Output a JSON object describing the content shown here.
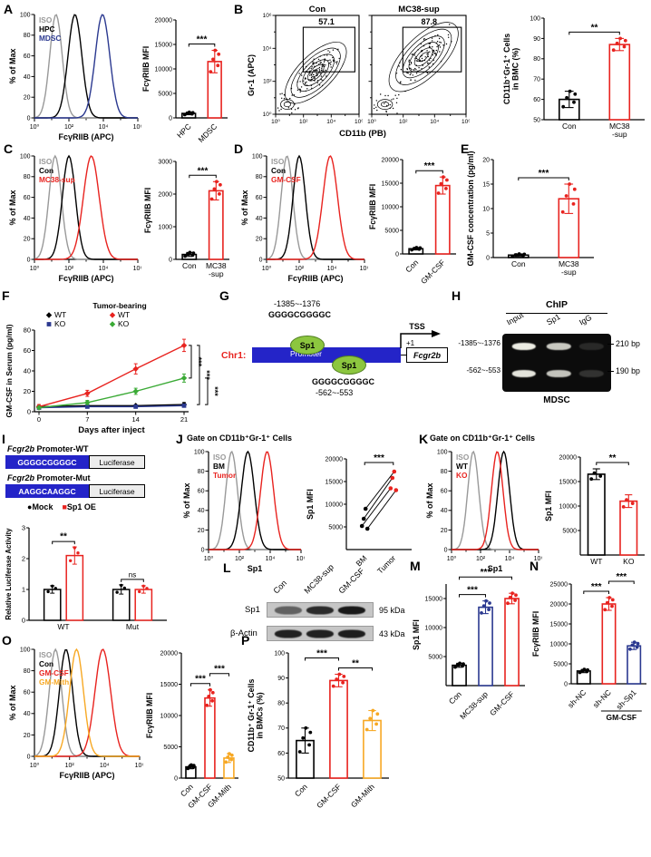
{
  "colors": {
    "black": "#000000",
    "red": "#e8231f",
    "blue": "#2b3990",
    "green": "#3aaa35",
    "orange": "#f7a823",
    "iso_gray": "#999999",
    "sp1_green": "#8cc63f",
    "promoter_blue": "#2424c8"
  },
  "panels": {
    "A": {
      "label": "A",
      "hist": {
        "ylabel": "% of Max",
        "xlabel": "FcγRIIB (APC)",
        "yticks": [
          0,
          20,
          40,
          60,
          80,
          100
        ],
        "xticklabels": [
          "10⁰",
          "10²",
          "10⁴",
          "10⁶"
        ],
        "series": [
          {
            "name": "ISO",
            "color": "#999999",
            "peak": 1.25,
            "sigma": 0.36
          },
          {
            "name": "HPC",
            "color": "#000000",
            "peak": 2.35,
            "sigma": 0.4
          },
          {
            "name": "MDSC",
            "color": "#2b3990",
            "peak": 3.95,
            "sigma": 0.42
          }
        ]
      },
      "bar": {
        "ylabel": "FcγRIIB MFI",
        "ylim": [
          0,
          20000
        ],
        "yticks": [
          0,
          5000,
          10000,
          15000,
          20000
        ],
        "categories": [
          "HPC",
          "MDSC"
        ],
        "values": [
          900,
          11500
        ],
        "errors": [
          250,
          2300
        ],
        "colors": [
          "#000000",
          "#e8231f"
        ],
        "n": 5,
        "sig": [
          {
            "from": 0,
            "to": 1,
            "label": "***"
          }
        ]
      }
    },
    "B": {
      "label": "B",
      "flow": {
        "titles": [
          "Con",
          "MC38-sup"
        ],
        "gates": [
          "57.1",
          "87.8"
        ],
        "xlabel": "CD11b (PB)",
        "ylabel": "Gr-1 (APC)",
        "ticks": [
          "10⁰",
          "10²",
          "10⁴",
          "10⁶"
        ],
        "centers": [
          [
            0.48,
            0.58
          ],
          [
            0.55,
            0.42
          ]
        ]
      },
      "bar": {
        "ylabel": [
          "CD11b⁺Gr-1⁺ Cells",
          "in BMC (%)"
        ],
        "ylim": [
          50,
          100
        ],
        "yticks": [
          50,
          60,
          70,
          80,
          90,
          100
        ],
        "categories": [
          "Con",
          [
            "MC38",
            "-sup"
          ]
        ],
        "values": [
          60,
          87
        ],
        "errors": [
          4,
          3
        ],
        "colors": [
          "#000000",
          "#e8231f"
        ],
        "n": 5,
        "sig": [
          {
            "from": 0,
            "to": 1,
            "label": "**"
          }
        ]
      }
    },
    "C": {
      "label": "C",
      "hist": {
        "ylabel": "% of Max",
        "xlabel": "FcγRIIB (APC)",
        "yticks": [
          0,
          20,
          40,
          60,
          80,
          100
        ],
        "xticklabels": [
          "10⁰",
          "10²",
          "10⁴",
          "10⁶"
        ],
        "series": [
          {
            "name": "ISO",
            "color": "#999999",
            "peak": 1.2,
            "sigma": 0.36
          },
          {
            "name": "Con",
            "color": "#000000",
            "peak": 2.0,
            "sigma": 0.38
          },
          {
            "name": "MC38-sup",
            "color": "#e8231f",
            "peak": 3.3,
            "sigma": 0.46
          }
        ]
      },
      "bar": {
        "ylabel": "FcγRIIB MFI",
        "ylim": [
          0,
          3000
        ],
        "yticks": [
          0,
          1000,
          2000,
          3000
        ],
        "categories": [
          "Con",
          [
            "MC38",
            "-sup"
          ]
        ],
        "values": [
          150,
          2100
        ],
        "errors": [
          60,
          280
        ],
        "colors": [
          "#000000",
          "#e8231f"
        ],
        "n": 5,
        "sig": [
          {
            "from": 0,
            "to": 1,
            "label": "***"
          }
        ]
      }
    },
    "D": {
      "label": "D",
      "hist": {
        "ylabel": "% of Max",
        "xlabel": "FcγRIIB (APC)",
        "yticks": [
          0,
          20,
          40,
          60,
          80,
          100
        ],
        "xticklabels": [
          "10⁰",
          "10²",
          "10⁴",
          "10⁶"
        ],
        "series": [
          {
            "name": "ISO",
            "color": "#999999",
            "peak": 1.25,
            "sigma": 0.36
          },
          {
            "name": "Con",
            "color": "#000000",
            "peak": 2.0,
            "sigma": 0.38
          },
          {
            "name": "GM-CSF",
            "color": "#e8231f",
            "peak": 3.9,
            "sigma": 0.45
          }
        ]
      },
      "bar": {
        "ylabel": "FcγRIIB MFI",
        "ylim": [
          0,
          20000
        ],
        "yticks": [
          0,
          5000,
          10000,
          15000,
          20000
        ],
        "categories": [
          "Con",
          "GM-CSF"
        ],
        "values": [
          1100,
          14500
        ],
        "errors": [
          250,
          1800
        ],
        "colors": [
          "#000000",
          "#e8231f"
        ],
        "n": 5,
        "sig": [
          {
            "from": 0,
            "to": 1,
            "label": "***"
          }
        ]
      }
    },
    "E": {
      "label": "E",
      "bar": {
        "ylabel": "GM-CSF concentration (pg/ml)",
        "ylim": [
          0,
          20
        ],
        "yticks": [
          0,
          5,
          10,
          15,
          20
        ],
        "categories": [
          "Con",
          [
            "MC38",
            "-sup"
          ]
        ],
        "values": [
          0.5,
          12
        ],
        "errors": [
          0.25,
          3
        ],
        "colors": [
          "#000000",
          "#e8231f"
        ],
        "n": 5,
        "sig": [
          {
            "from": 0,
            "to": 1,
            "label": "***"
          }
        ]
      }
    },
    "F": {
      "label": "F",
      "line": {
        "ylabel": "GM-CSF in Serum (pg/ml)",
        "xlabel": "Days after inject",
        "xticks": [
          0,
          7,
          14,
          21
        ],
        "ylim": [
          0,
          80
        ],
        "yticks": [
          0,
          20,
          40,
          60,
          80
        ],
        "legend": {
          "title": "Tumor-bearing",
          "left": [
            {
              "label": "WT",
              "color": "#000000",
              "marker": "diamond"
            },
            {
              "label": "KO",
              "color": "#2b3990",
              "marker": "square"
            }
          ],
          "right": [
            {
              "label": "WT",
              "color": "#e8231f",
              "marker": "diamond"
            },
            {
              "label": "KO",
              "color": "#3aaa35",
              "marker": "diamond"
            }
          ]
        },
        "series": [
          {
            "name": "WT",
            "color": "#000000",
            "marker": "diamond",
            "values": [
              5,
              6,
              6,
              7
            ],
            "errors": [
              1,
              1,
              1,
              2
            ]
          },
          {
            "name": "KO",
            "color": "#2b3990",
            "marker": "square",
            "values": [
              4,
              5,
              5,
              6
            ],
            "errors": [
              1,
              1,
              1,
              1
            ]
          },
          {
            "name": "Tumor-bearing WT",
            "color": "#e8231f",
            "marker": "diamond",
            "values": [
              5,
              18,
              42,
              65
            ],
            "errors": [
              2,
              3,
              5,
              6
            ]
          },
          {
            "name": "Tumor-bearing KO",
            "color": "#3aaa35",
            "marker": "diamond",
            "values": [
              4,
              9,
              20,
              33
            ],
            "errors": [
              1,
              2,
              3,
              4
            ]
          }
        ],
        "sig": [
          "***",
          "***",
          "***"
        ]
      }
    },
    "G": {
      "label": "G",
      "pos1": "-1385~-1376",
      "seq1": "GGGGCGGGGC",
      "chr": "Chr1:",
      "promoter": "Promoter",
      "sp1a": "Sp1",
      "sp1b": "Sp1",
      "tss": "TSS",
      "plus_one": "+1",
      "gene": "Fcgr2b",
      "seq2": "GGGGCGGGGC",
      "pos2": "-562~-553"
    },
    "H": {
      "label": "H",
      "title": "ChIP",
      "cols": [
        "Input",
        "Sp1",
        "IgG"
      ],
      "row_labels": [
        "-1385~-1376",
        "-562~-553"
      ],
      "sizes": [
        "210 bp",
        "190 bp"
      ],
      "footer": "MDSC",
      "gel": {
        "lanes": [
          0.2,
          0.52,
          0.82
        ],
        "rows": [
          {
            "top": 16,
            "bands": [
              0.95,
              0.8,
              0.12
            ]
          },
          {
            "top": 62,
            "bands": [
              0.92,
              0.78,
              0.16
            ]
          }
        ]
      }
    },
    "I": {
      "label": "I",
      "constructs": [
        {
          "gene": "Fcgr2b",
          "suffix": " Promoter-WT",
          "seq": "GGGGCGGGGC",
          "reporter": "Luciferase"
        },
        {
          "gene": "Fcgr2b",
          "suffix": " Promoter-Mut",
          "seq": "AAGGCAAGGC",
          "reporter": "Luciferase"
        }
      ],
      "legend": [
        {
          "symbol": "●",
          "label": "Mock",
          "color": "#000000"
        },
        {
          "symbol": "■",
          "label": "Sp1 OE",
          "color": "#e8231f"
        }
      ],
      "gbar": {
        "ylabel": "Relative Luciferase Activity",
        "ylim": [
          0,
          3
        ],
        "yticks": [
          0,
          1,
          2,
          3
        ],
        "categories": [
          "WT",
          "Mut"
        ],
        "series": [
          {
            "name": "Mock",
            "color": "#000000"
          },
          {
            "name": "Sp1 OE",
            "color": "#e8231f"
          }
        ],
        "values": [
          [
            1.0,
            2.1
          ],
          [
            1.0,
            1.0
          ]
        ],
        "errors": [
          [
            0.12,
            0.28
          ],
          [
            0.15,
            0.12
          ]
        ],
        "sig": [
          "**",
          "ns"
        ]
      }
    },
    "J": {
      "label": "J",
      "title": "Gate on CD11b⁺Gr-1⁺ Cells",
      "hist": {
        "ylabel": "% of Max",
        "xlabel": "Sp1",
        "yticks": [
          0,
          20,
          40,
          60,
          80,
          100
        ],
        "xticklabels": [
          "10⁰",
          "10²",
          "10⁴",
          "10⁶"
        ],
        "series": [
          {
            "name": "ISO",
            "color": "#999999",
            "peak": 1.5,
            "sigma": 0.38
          },
          {
            "name": "BM",
            "color": "#000000",
            "peak": 2.55,
            "sigma": 0.42
          },
          {
            "name": "Tumor",
            "color": "#e8231f",
            "peak": 3.8,
            "sigma": 0.42
          }
        ]
      },
      "paired": {
        "ylabel": "Sp1 MFI",
        "ylim": [
          0,
          20000
        ],
        "yticks": [
          5000,
          10000,
          15000,
          20000
        ],
        "categories": [
          "BM",
          "Tumor"
        ],
        "colors": [
          "#000000",
          "#e8231f"
        ],
        "pairs": [
          [
            5200,
            13500
          ],
          [
            6800,
            15800
          ],
          [
            9000,
            17200
          ],
          [
            4600,
            13100
          ]
        ],
        "sig": "***"
      }
    },
    "K": {
      "label": "K",
      "title": "Gate on CD11b⁺Gr-1⁺ Cells",
      "hist": {
        "ylabel": "% of Max",
        "xlabel": "Sp1",
        "yticks": [
          0,
          20,
          40,
          60,
          80,
          100
        ],
        "xticklabels": [
          "10⁰",
          "10²",
          "10⁴",
          "10⁶"
        ],
        "series": [
          {
            "name": "ISO",
            "color": "#999999",
            "peak": 1.5,
            "sigma": 0.38
          },
          {
            "name": "WT",
            "color": "#000000",
            "peak": 3.6,
            "sigma": 0.4
          },
          {
            "name": "KO",
            "color": "#e8231f",
            "peak": 3.15,
            "sigma": 0.4
          }
        ]
      },
      "bar": {
        "ylabel": "Sp1 MFI",
        "ylim": [
          0,
          20000
        ],
        "yticks": [
          5000,
          10000,
          15000,
          20000
        ],
        "categories": [
          "WT",
          "KO"
        ],
        "values": [
          16500,
          11000
        ],
        "errors": [
          1100,
          1300
        ],
        "colors": [
          "#000000",
          "#e8231f"
        ],
        "n": 3,
        "sig": [
          {
            "from": 0,
            "to": 1,
            "label": "**"
          }
        ]
      }
    },
    "L": {
      "label": "L",
      "lanes": [
        "Con",
        "MC38-sup",
        "GM-CSF"
      ],
      "rows": [
        {
          "label": "Sp1",
          "size": "95 kDa",
          "bands": [
            0.55,
            0.85,
            0.95
          ]
        },
        {
          "label": "β-Actin",
          "size": "43 kDa",
          "bands": [
            0.9,
            0.9,
            0.92
          ]
        }
      ]
    },
    "M": {
      "label": "M",
      "bar": {
        "ylabel": "Sp1 MFI",
        "ylim": [
          0,
          17500
        ],
        "yticks": [
          5000,
          10000,
          15000
        ],
        "categories": [
          "Con",
          "MC38-sup",
          "GM-CSF"
        ],
        "values": [
          3500,
          13500,
          15000
        ],
        "errors": [
          350,
          1100,
          900
        ],
        "colors": [
          "#000000",
          "#2b3990",
          "#e8231f"
        ],
        "n": 5,
        "sig": [
          {
            "from": 0,
            "to": 1,
            "label": "***",
            "level": 0
          },
          {
            "from": 0,
            "to": 2,
            "label": "***",
            "level": 1
          }
        ]
      }
    },
    "N": {
      "label": "N",
      "bar": {
        "ylabel": "FcγRIIB MFI",
        "ylim": [
          0,
          25000
        ],
        "yticks": [
          0,
          5000,
          10000,
          15000,
          20000,
          25000
        ],
        "categories": [
          "sh-NC",
          "sh-NC",
          "sh-Sp1"
        ],
        "values": [
          3200,
          20000,
          9500
        ],
        "errors": [
          400,
          1600,
          900
        ],
        "colors": [
          "#000000",
          "#e8231f",
          "#2b3990"
        ],
        "n": 5,
        "sig": [
          {
            "from": 0,
            "to": 1,
            "label": "***",
            "level": 0
          },
          {
            "from": 1,
            "to": 2,
            "label": "***",
            "level": 1
          }
        ],
        "group_label": {
          "from": 1,
          "to": 2,
          "label": "GM-CSF"
        }
      }
    },
    "O": {
      "label": "O",
      "hist": {
        "ylabel": "% of Max",
        "xlabel": "FcγRIIB (APC)",
        "yticks": [
          0,
          20,
          40,
          60,
          80,
          100
        ],
        "xticklabels": [
          "10⁰",
          "10²",
          "10⁴",
          "10⁶"
        ],
        "series": [
          {
            "name": "ISO",
            "color": "#999999",
            "peak": 1.2,
            "sigma": 0.36
          },
          {
            "name": "Con",
            "color": "#000000",
            "peak": 1.8,
            "sigma": 0.38
          },
          {
            "name": "GM-CSF",
            "color": "#e8231f",
            "peak": 3.9,
            "sigma": 0.45
          },
          {
            "name": "GM-Mith",
            "color": "#f7a823",
            "peak": 2.4,
            "sigma": 0.4
          }
        ]
      },
      "bar": {
        "ylabel": "FcγRIIB MFI",
        "ylim": [
          0,
          20000
        ],
        "yticks": [
          0,
          5000,
          10000,
          15000,
          20000
        ],
        "categories": [
          "Con",
          "GM-CSF",
          "GM-Mith"
        ],
        "values": [
          1800,
          12800,
          3200
        ],
        "errors": [
          300,
          1300,
          700
        ],
        "colors": [
          "#000000",
          "#e8231f",
          "#f7a823"
        ],
        "n": 5,
        "sig": [
          {
            "from": 0,
            "to": 1,
            "label": "***",
            "level": 0
          },
          {
            "from": 1,
            "to": 2,
            "label": "***",
            "level": 1
          }
        ]
      }
    },
    "P": {
      "label": "P",
      "bar": {
        "ylabel": [
          "CD11b⁺ Gr-1⁺ Cells",
          "in BMCs (%)"
        ],
        "ylim": [
          50,
          100
        ],
        "yticks": [
          50,
          60,
          70,
          80,
          90,
          100
        ],
        "categories": [
          "Con",
          "GM-CSF",
          "GM-Mith"
        ],
        "values": [
          65,
          89,
          73
        ],
        "errors": [
          5,
          2.5,
          4
        ],
        "colors": [
          "#000000",
          "#e8231f",
          "#f7a823"
        ],
        "n": 5,
        "sig": [
          {
            "from": 0,
            "to": 1,
            "label": "***",
            "level": 1
          },
          {
            "from": 1,
            "to": 2,
            "label": "**",
            "level": 0
          }
        ]
      }
    }
  }
}
